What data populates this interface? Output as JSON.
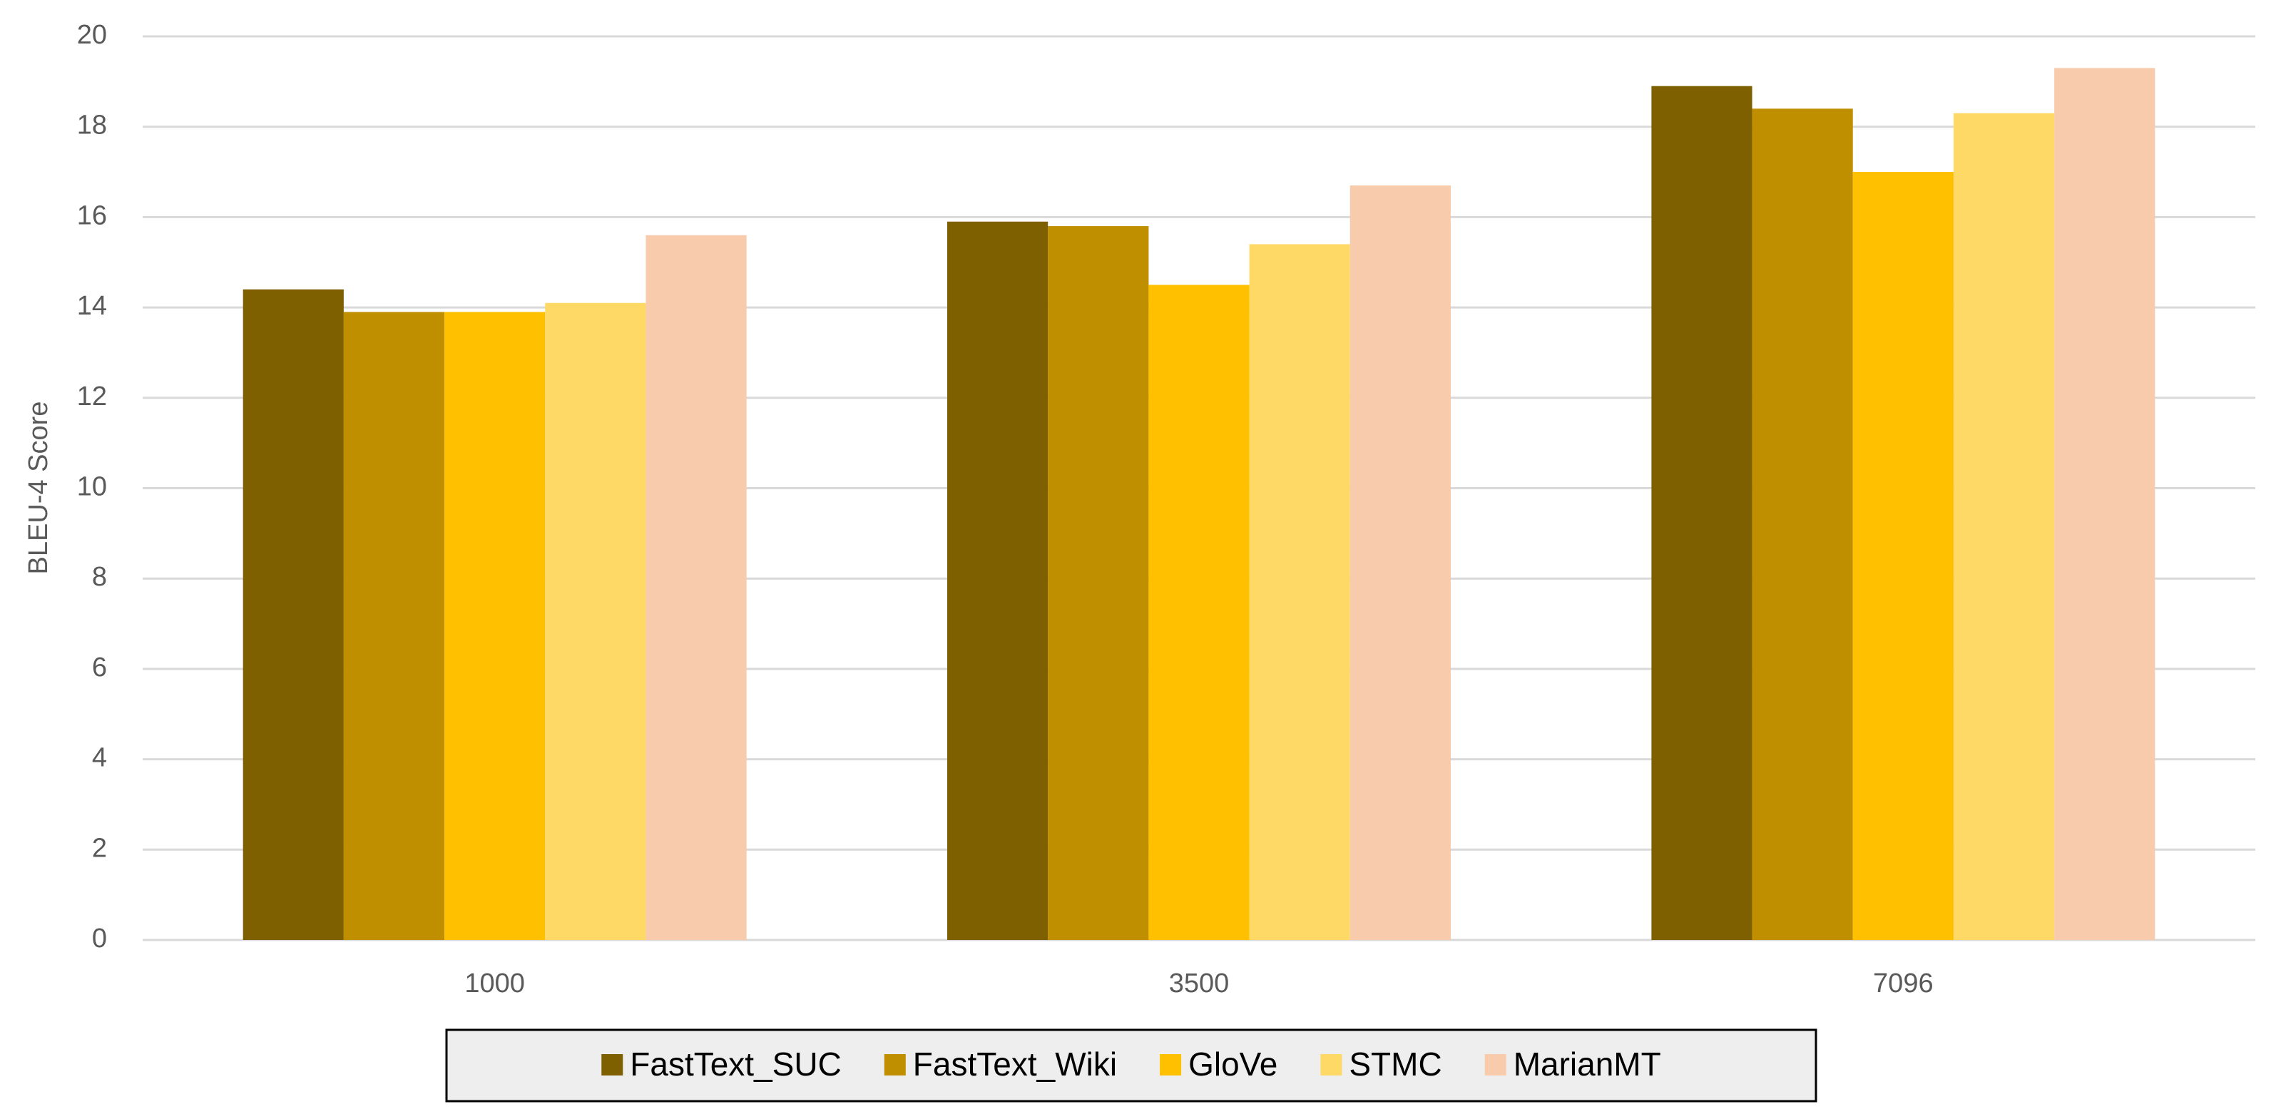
{
  "chart_data": {
    "type": "bar",
    "y_label": "BLEU-4 Score",
    "categories": [
      "1000",
      "3500",
      "7096"
    ],
    "series": [
      {
        "name": "FastText_SUC",
        "color": "#7f6000",
        "values": [
          14.4,
          15.9,
          18.9
        ]
      },
      {
        "name": "FastText_Wiki",
        "color": "#bf8f00",
        "values": [
          13.9,
          15.8,
          18.4
        ]
      },
      {
        "name": "GloVe",
        "color": "#ffc000",
        "values": [
          13.9,
          14.5,
          17.0
        ]
      },
      {
        "name": "STMC",
        "color": "#ffd966",
        "values": [
          14.1,
          15.4,
          18.3
        ]
      },
      {
        "name": "MarianMT",
        "color": "#f8cbad",
        "values": [
          15.6,
          16.7,
          19.3
        ]
      }
    ],
    "ylim": [
      0,
      20
    ],
    "yticks": [
      0,
      2,
      4,
      6,
      8,
      10,
      12,
      14,
      16,
      18,
      20
    ],
    "grid": true,
    "legend": "bottom"
  }
}
